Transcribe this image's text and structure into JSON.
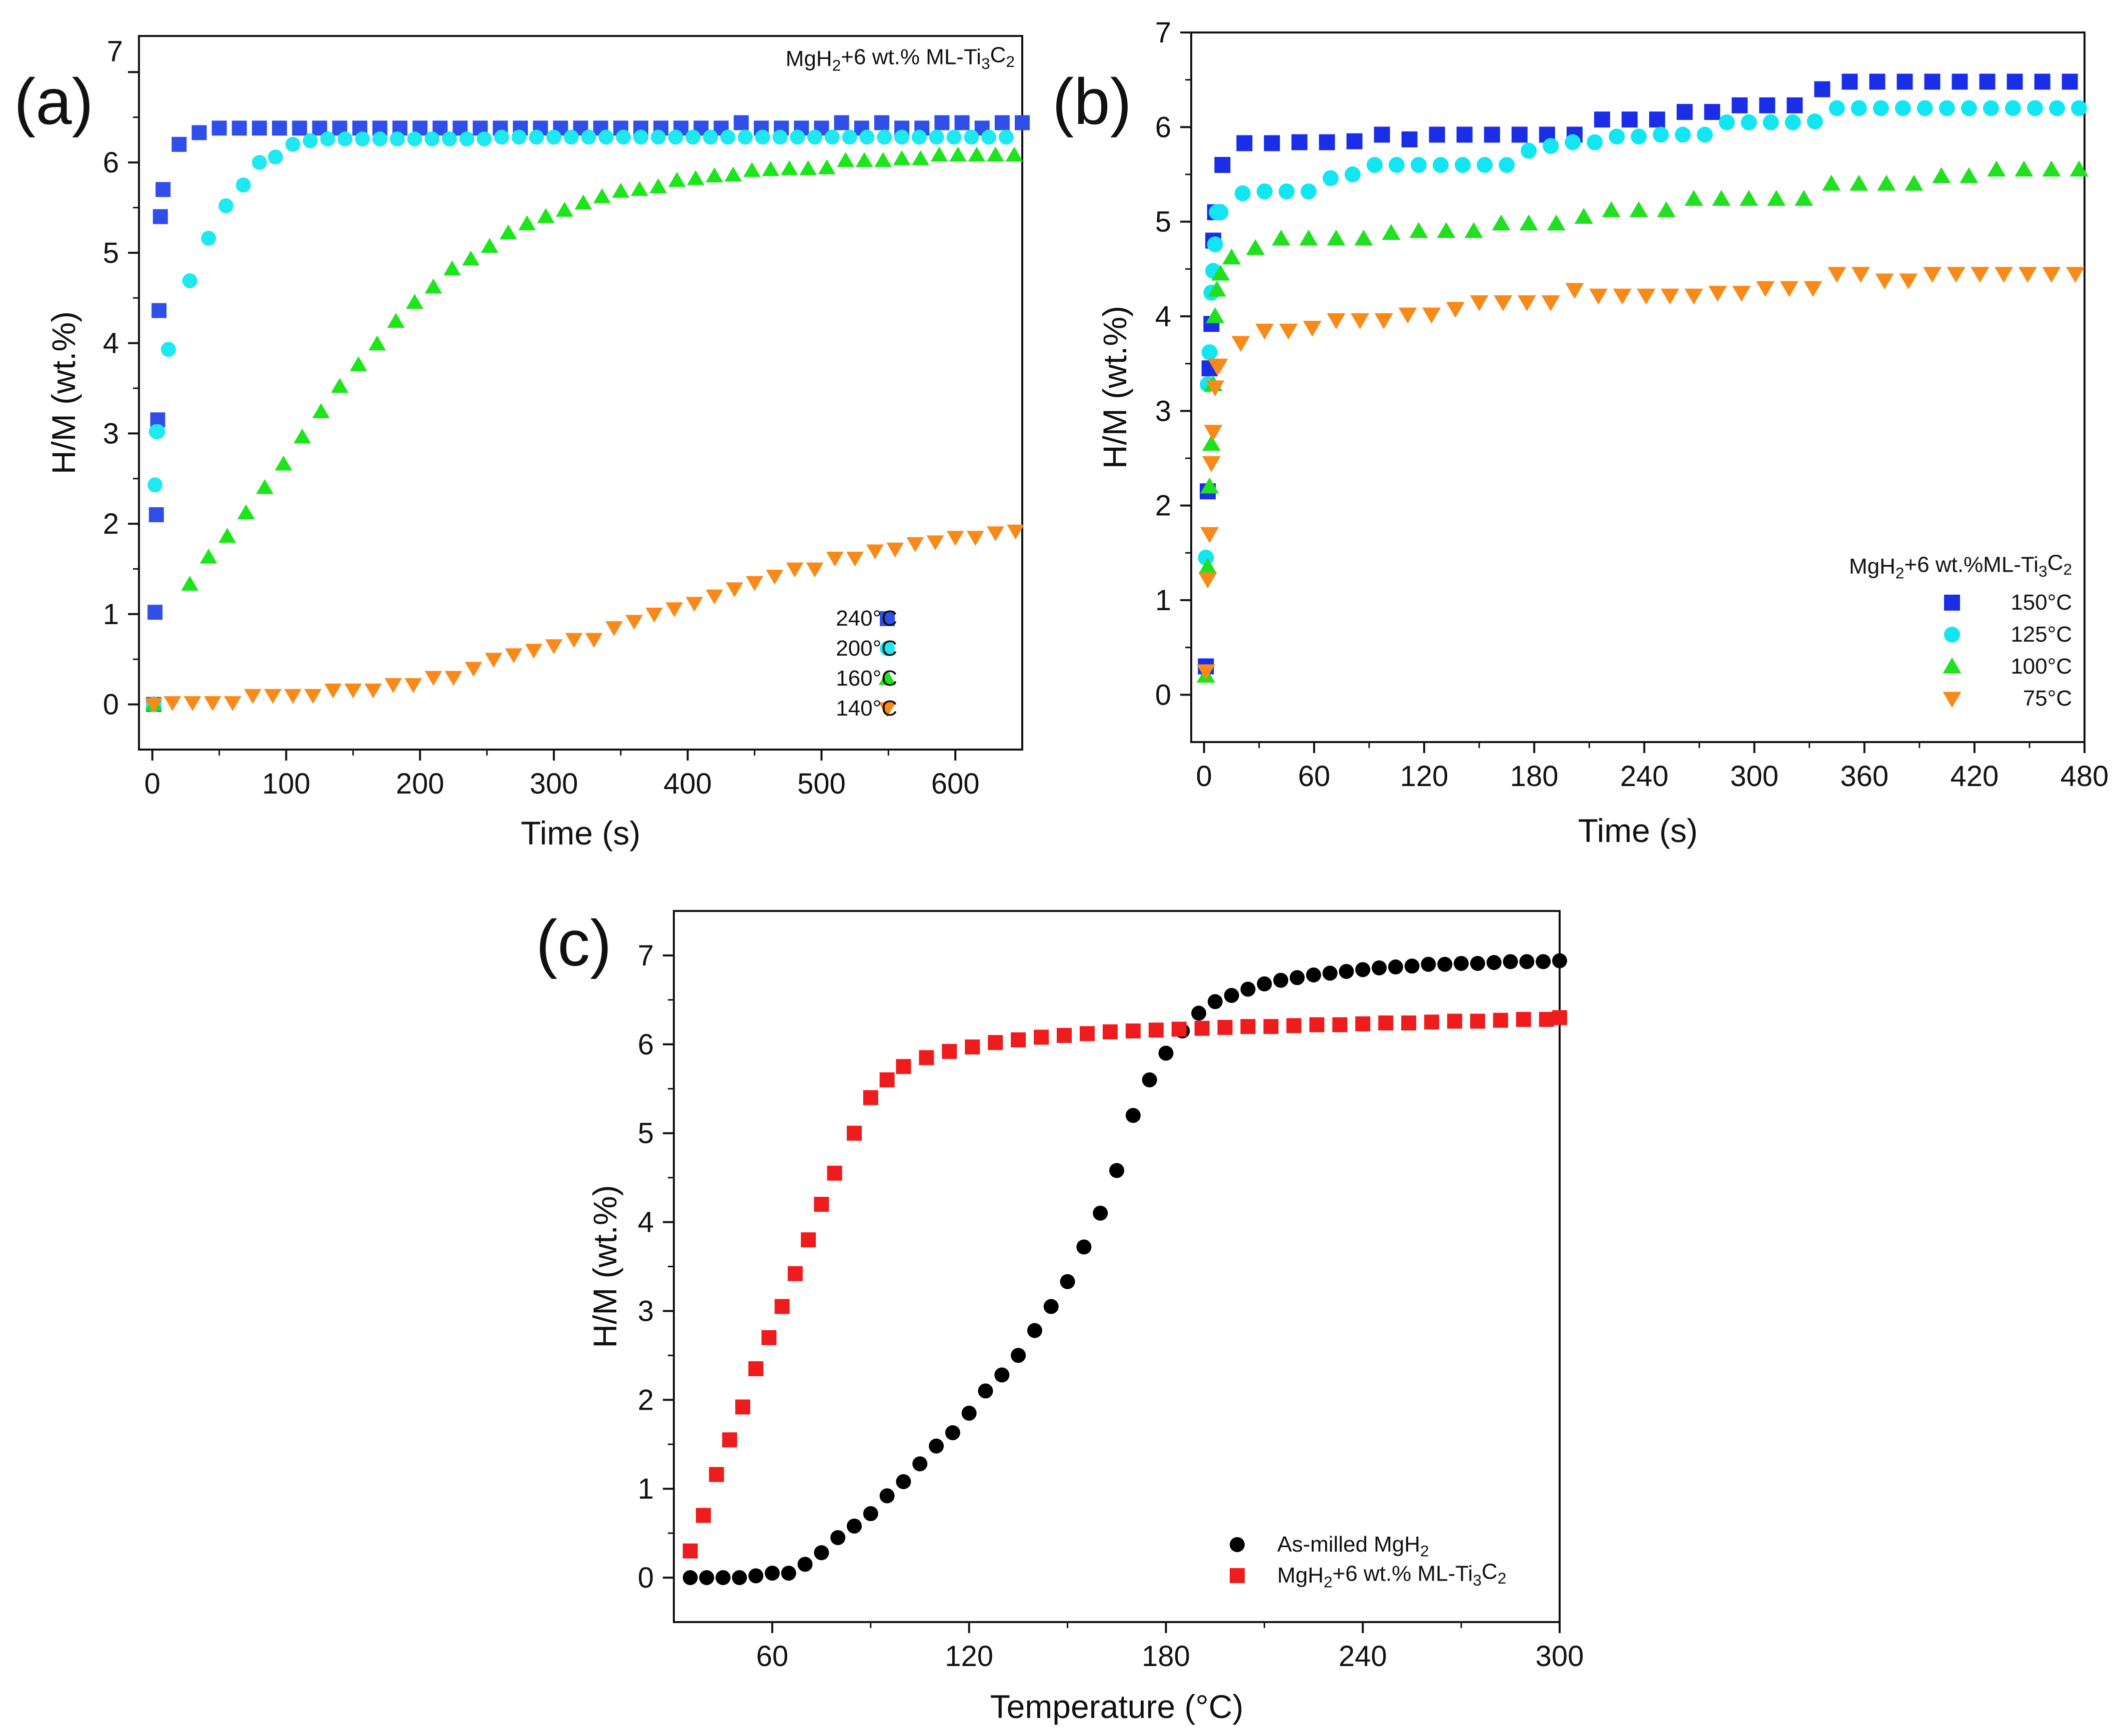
{
  "chart_data": [
    {
      "type": "scatter",
      "panel_label": "(a)",
      "title": "MgH<sub>2</sub>+6 wt.% ML-Ti<sub>3</sub>C<sub>2</sub>",
      "xlabel": "Time (s)",
      "ylabel": "H/M (wt.%)",
      "xlim": [
        -10,
        650
      ],
      "ylim": [
        -0.5,
        7.4
      ],
      "xticks": [
        0,
        100,
        200,
        300,
        400,
        500,
        600
      ],
      "yticks": [
        0,
        1,
        2,
        3,
        4,
        5,
        6,
        7
      ],
      "legend_position": "bottom-right",
      "series": [
        {
          "name": "240°C",
          "marker": "square",
          "color": "#2f4fe8",
          "x": [
            1,
            2,
            3,
            4,
            5,
            6,
            8,
            20,
            35,
            50,
            65,
            80,
            95,
            110,
            125,
            140,
            155,
            170,
            185,
            200,
            215,
            230,
            245,
            260,
            275,
            290,
            305,
            320,
            335,
            350,
            365,
            380,
            395,
            410,
            425,
            440,
            455,
            470,
            485,
            500,
            515,
            530,
            545,
            560,
            575,
            590,
            605,
            620,
            635,
            650
          ],
          "y": [
            0,
            1.02,
            2.1,
            3.15,
            4.36,
            5.4,
            5.7,
            6.2,
            6.33,
            6.38,
            6.38,
            6.38,
            6.38,
            6.38,
            6.38,
            6.38,
            6.38,
            6.38,
            6.38,
            6.38,
            6.38,
            6.38,
            6.38,
            6.38,
            6.38,
            6.38,
            6.38,
            6.38,
            6.38,
            6.38,
            6.38,
            6.38,
            6.38,
            6.38,
            6.38,
            6.44,
            6.38,
            6.38,
            6.38,
            6.38,
            6.44,
            6.38,
            6.44,
            6.38,
            6.38,
            6.44,
            6.44,
            6.38,
            6.44,
            6.44
          ]
        },
        {
          "name": "200°C",
          "marker": "circle",
          "color": "#1ee8f0",
          "x": [
            1,
            2,
            3,
            4,
            12,
            28,
            42,
            55,
            68,
            80,
            92,
            105,
            118,
            131,
            144,
            157,
            170,
            183,
            196,
            209,
            222,
            235,
            248,
            261,
            274,
            287,
            300,
            313,
            326,
            339,
            352,
            365,
            378,
            391,
            404,
            417,
            430,
            443,
            456,
            469,
            482,
            495,
            508,
            521,
            534,
            547,
            560,
            573,
            586,
            599,
            612,
            625,
            638
          ],
          "y": [
            0,
            2.43,
            3.02,
            3.02,
            3.93,
            4.69,
            5.16,
            5.52,
            5.75,
            6.0,
            6.06,
            6.2,
            6.24,
            6.26,
            6.26,
            6.26,
            6.26,
            6.26,
            6.26,
            6.26,
            6.26,
            6.26,
            6.26,
            6.28,
            6.28,
            6.28,
            6.28,
            6.28,
            6.28,
            6.28,
            6.28,
            6.28,
            6.28,
            6.28,
            6.28,
            6.28,
            6.28,
            6.28,
            6.28,
            6.28,
            6.28,
            6.28,
            6.28,
            6.28,
            6.28,
            6.28,
            6.28,
            6.28,
            6.28,
            6.28,
            6.28,
            6.28,
            6.28
          ]
        },
        {
          "name": "160°C",
          "marker": "triangle-up",
          "color": "#1ae61a",
          "x": [
            1,
            28,
            42,
            56,
            70,
            84,
            98,
            112,
            126,
            140,
            154,
            168,
            182,
            196,
            210,
            224,
            238,
            252,
            266,
            280,
            294,
            308,
            322,
            336,
            350,
            364,
            378,
            392,
            406,
            420,
            434,
            448,
            462,
            476,
            490,
            504,
            518,
            532,
            546,
            560,
            574,
            588,
            602,
            616,
            630,
            644
          ],
          "y": [
            0,
            1.33,
            1.63,
            1.86,
            2.12,
            2.4,
            2.66,
            2.96,
            3.24,
            3.52,
            3.76,
            3.99,
            4.24,
            4.45,
            4.62,
            4.82,
            4.93,
            5.07,
            5.22,
            5.32,
            5.4,
            5.47,
            5.55,
            5.62,
            5.68,
            5.7,
            5.73,
            5.8,
            5.82,
            5.85,
            5.86,
            5.91,
            5.92,
            5.93,
            5.93,
            5.94,
            6.02,
            6.02,
            6.02,
            6.04,
            6.04,
            6.08,
            6.08,
            6.08,
            6.08,
            6.08
          ]
        },
        {
          "name": "140°C",
          "marker": "triangle-down",
          "color": "#f98a1a",
          "x": [
            1,
            15,
            30,
            45,
            60,
            75,
            90,
            105,
            120,
            135,
            150,
            165,
            180,
            195,
            210,
            225,
            240,
            255,
            270,
            285,
            300,
            315,
            330,
            345,
            360,
            375,
            390,
            405,
            420,
            435,
            450,
            465,
            480,
            495,
            510,
            525,
            540,
            555,
            570,
            585,
            600,
            615,
            630,
            645
          ],
          "y": [
            0,
            0.02,
            0.02,
            0.02,
            0.02,
            0.1,
            0.1,
            0.1,
            0.1,
            0.16,
            0.16,
            0.16,
            0.22,
            0.22,
            0.3,
            0.3,
            0.4,
            0.5,
            0.55,
            0.6,
            0.65,
            0.72,
            0.72,
            0.85,
            0.92,
            1.0,
            1.06,
            1.12,
            1.2,
            1.28,
            1.35,
            1.42,
            1.5,
            1.5,
            1.62,
            1.62,
            1.7,
            1.72,
            1.78,
            1.8,
            1.85,
            1.85,
            1.9,
            1.92
          ]
        }
      ]
    },
    {
      "type": "scatter",
      "panel_label": "(b)",
      "legend_title": "MgH<sub>2</sub>+6 wt.%ML-Ti<sub>3</sub>C<sub>2</sub>",
      "xlabel": "Time (s)",
      "ylabel": "H/M (wt.%)",
      "xlim": [
        -7,
        480
      ],
      "ylim": [
        -0.5,
        7
      ],
      "xticks": [
        0,
        60,
        120,
        180,
        240,
        300,
        360,
        420,
        480
      ],
      "yticks": [
        0,
        1,
        2,
        3,
        4,
        5,
        6,
        7
      ],
      "legend_position": "bottom-right",
      "series": [
        {
          "name": "150°C",
          "marker": "square",
          "color": "#1a2ee8",
          "x": [
            1,
            2,
            3,
            4,
            5,
            6,
            10,
            22,
            37,
            52,
            67,
            82,
            97,
            112,
            127,
            142,
            157,
            172,
            187,
            202,
            217,
            232,
            247,
            262,
            277,
            292,
            307,
            322,
            337,
            352,
            367,
            382,
            397,
            412,
            427,
            442,
            457,
            472
          ],
          "y": [
            0.3,
            2.15,
            3.45,
            3.92,
            4.8,
            5.1,
            5.6,
            5.83,
            5.83,
            5.84,
            5.84,
            5.85,
            5.92,
            5.87,
            5.92,
            5.92,
            5.92,
            5.92,
            5.92,
            5.92,
            6.08,
            6.08,
            6.08,
            6.16,
            6.16,
            6.23,
            6.23,
            6.23,
            6.4,
            6.48,
            6.48,
            6.48,
            6.48,
            6.48,
            6.48,
            6.48,
            6.48,
            6.48
          ]
        },
        {
          "name": "125°C",
          "marker": "circle",
          "color": "#12e6f2",
          "x": [
            1,
            2,
            3,
            4,
            5,
            6,
            7,
            9,
            21,
            33,
            45,
            57,
            69,
            81,
            93,
            105,
            117,
            129,
            141,
            153,
            165,
            177,
            189,
            201,
            213,
            225,
            237,
            249,
            261,
            273,
            285,
            297,
            309,
            321,
            333,
            345,
            357,
            369,
            381,
            393,
            405,
            417,
            429,
            441,
            453,
            465,
            477
          ],
          "y": [
            1.45,
            3.28,
            3.62,
            4.25,
            4.48,
            4.76,
            5.1,
            5.1,
            5.3,
            5.32,
            5.32,
            5.32,
            5.46,
            5.5,
            5.6,
            5.6,
            5.6,
            5.6,
            5.6,
            5.6,
            5.6,
            5.75,
            5.8,
            5.84,
            5.84,
            5.9,
            5.9,
            5.92,
            5.92,
            5.92,
            6.05,
            6.05,
            6.05,
            6.05,
            6.06,
            6.2,
            6.2,
            6.2,
            6.2,
            6.2,
            6.2,
            6.2,
            6.2,
            6.2,
            6.2,
            6.2,
            6.2
          ]
        },
        {
          "name": "100°C",
          "marker": "triangle-up",
          "color": "#20e020",
          "x": [
            1,
            2,
            3,
            4,
            5,
            6,
            7,
            9,
            15,
            28,
            42,
            57,
            72,
            87,
            102,
            117,
            132,
            147,
            162,
            177,
            192,
            207,
            222,
            237,
            252,
            267,
            282,
            297,
            312,
            327,
            342,
            357,
            372,
            387,
            402,
            417,
            432,
            447,
            462,
            477
          ],
          "y": [
            0.2,
            1.35,
            2.2,
            2.65,
            3.28,
            4.0,
            4.28,
            4.45,
            4.62,
            4.72,
            4.82,
            4.82,
            4.82,
            4.82,
            4.88,
            4.9,
            4.9,
            4.9,
            4.98,
            4.98,
            4.98,
            5.05,
            5.12,
            5.12,
            5.12,
            5.24,
            5.24,
            5.24,
            5.24,
            5.24,
            5.4,
            5.4,
            5.4,
            5.4,
            5.48,
            5.48,
            5.55,
            5.55,
            5.55,
            5.55
          ]
        },
        {
          "name": "75°C",
          "marker": "triangle-down",
          "color": "#f98a1a",
          "x": [
            1,
            2,
            3,
            4,
            5,
            6,
            7,
            8,
            20,
            33,
            46,
            59,
            72,
            85,
            98,
            111,
            124,
            137,
            150,
            163,
            176,
            189,
            202,
            215,
            228,
            241,
            254,
            267,
            280,
            293,
            306,
            319,
            332,
            345,
            358,
            371,
            384,
            397,
            410,
            423,
            436,
            449,
            462,
            475
          ],
          "y": [
            0.25,
            1.22,
            1.7,
            2.45,
            2.78,
            3.25,
            3.48,
            3.48,
            3.72,
            3.85,
            3.85,
            3.88,
            3.96,
            3.96,
            3.96,
            4.02,
            4.02,
            4.08,
            4.15,
            4.15,
            4.15,
            4.15,
            4.28,
            4.22,
            4.22,
            4.22,
            4.22,
            4.22,
            4.25,
            4.25,
            4.3,
            4.3,
            4.3,
            4.45,
            4.45,
            4.38,
            4.38,
            4.45,
            4.45,
            4.45,
            4.45,
            4.45,
            4.45,
            4.45
          ]
        }
      ]
    },
    {
      "type": "scatter",
      "panel_label": "(c)",
      "xlabel": "Temperature (°C)",
      "ylabel": "H/M (wt.%)",
      "xlim": [
        30,
        300
      ],
      "ylim": [
        -0.5,
        7.5
      ],
      "xticks": [
        60,
        120,
        180,
        240,
        300
      ],
      "yticks": [
        0,
        1,
        2,
        3,
        4,
        5,
        6,
        7
      ],
      "legend_position": "bottom-right",
      "series": [
        {
          "name": "As-milled MgH<sub>2</sub>",
          "marker": "circle",
          "color": "#000000",
          "x": [
            35,
            40,
            45,
            50,
            55,
            60,
            65,
            70,
            75,
            80,
            85,
            90,
            95,
            100,
            105,
            110,
            115,
            120,
            125,
            130,
            135,
            140,
            145,
            150,
            155,
            160,
            165,
            170,
            175,
            180,
            185,
            190,
            195,
            200,
            205,
            210,
            215,
            220,
            225,
            230,
            235,
            240,
            245,
            250,
            255,
            260,
            265,
            270,
            275,
            280,
            285,
            290,
            295,
            300
          ],
          "y": [
            0,
            0,
            0,
            0,
            0.02,
            0.05,
            0.05,
            0.15,
            0.28,
            0.45,
            0.58,
            0.72,
            0.92,
            1.08,
            1.28,
            1.48,
            1.63,
            1.85,
            2.1,
            2.28,
            2.5,
            2.78,
            3.05,
            3.33,
            3.72,
            4.1,
            4.58,
            5.2,
            5.6,
            5.9,
            6.15,
            6.35,
            6.48,
            6.55,
            6.62,
            6.68,
            6.72,
            6.75,
            6.78,
            6.8,
            6.82,
            6.84,
            6.86,
            6.87,
            6.88,
            6.9,
            6.9,
            6.91,
            6.91,
            6.92,
            6.93,
            6.93,
            6.93,
            6.94
          ]
        },
        {
          "name": "MgH<sub>2</sub>+6 wt.% ML-Ti<sub>3</sub>C<sub>2</sub>",
          "marker": "square",
          "color": "#ee1c1c",
          "x": [
            35,
            39,
            43,
            47,
            51,
            55,
            59,
            63,
            67,
            71,
            75,
            79,
            85,
            90,
            95,
            100,
            107,
            114,
            121,
            128,
            135,
            142,
            149,
            156,
            163,
            170,
            177,
            184,
            191,
            198,
            205,
            212,
            219,
            226,
            233,
            240,
            247,
            254,
            261,
            268,
            275,
            282,
            289,
            296,
            300
          ],
          "y": [
            0.3,
            0.7,
            1.16,
            1.55,
            1.92,
            2.35,
            2.7,
            3.05,
            3.42,
            3.8,
            4.2,
            4.55,
            5.0,
            5.4,
            5.6,
            5.75,
            5.85,
            5.92,
            5.97,
            6.02,
            6.05,
            6.08,
            6.1,
            6.12,
            6.14,
            6.15,
            6.16,
            6.17,
            6.18,
            6.19,
            6.2,
            6.2,
            6.21,
            6.22,
            6.22,
            6.23,
            6.24,
            6.24,
            6.25,
            6.26,
            6.26,
            6.27,
            6.28,
            6.28,
            6.3
          ]
        }
      ]
    }
  ]
}
